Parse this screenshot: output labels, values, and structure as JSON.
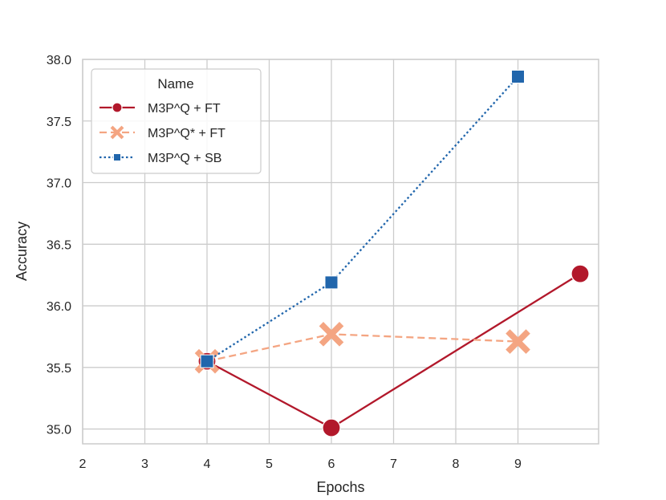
{
  "chart_data": {
    "type": "line",
    "xlabel": "Epochs",
    "ylabel": "Accuracy",
    "x_ticks": [
      "2",
      "3",
      "4",
      "5",
      "6",
      "7",
      "8",
      "9"
    ],
    "y_ticks": [
      "35.0",
      "35.5",
      "36.0",
      "36.5",
      "37.0",
      "37.5",
      "38.0"
    ],
    "ylim": [
      34.88,
      38.0
    ],
    "grid": true,
    "legend": {
      "title": "Name",
      "placement": "top-left"
    },
    "series": [
      {
        "name": "M3P^Q + FT",
        "color": "#b2182b",
        "line_style": "solid",
        "marker": "circle",
        "x": [
          4,
          6,
          10
        ],
        "y": [
          35.55,
          35.01,
          36.26
        ]
      },
      {
        "name": "M3P^Q* + FT",
        "color": "#f4a582",
        "line_style": "dashed",
        "marker": "x",
        "x": [
          4,
          6,
          9
        ],
        "y": [
          35.55,
          35.77,
          35.71
        ]
      },
      {
        "name": "M3P^Q + SB",
        "color": "#2166ac",
        "line_style": "dotted",
        "marker": "square",
        "x": [
          4,
          6,
          9
        ],
        "y": [
          35.55,
          36.19,
          37.86
        ]
      }
    ]
  }
}
